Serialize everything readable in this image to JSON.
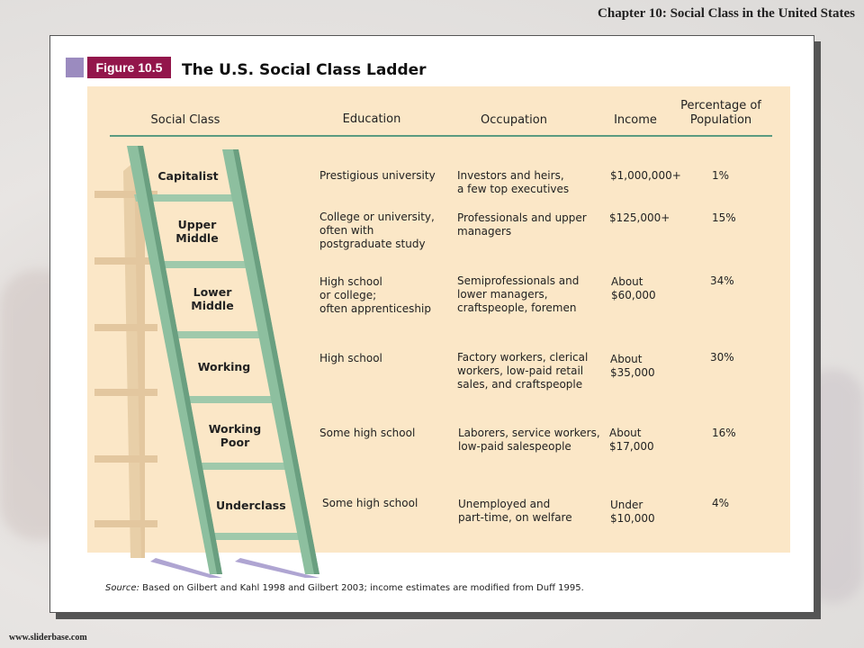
{
  "slide": {
    "chapter": "Chapter  10: Social Class in the United States",
    "site": "www.sliderbase.com"
  },
  "figure": {
    "label": "Figure 10.5",
    "title": "The U.S. Social Class Ladder"
  },
  "table": {
    "headers": {
      "social_class": "Social Class",
      "education": "Education",
      "occupation": "Occupation",
      "income": "Income",
      "percentage": "Percentage of\nPopulation"
    },
    "rows": [
      {
        "class": "Capitalist",
        "education": "Prestigious university",
        "occupation": "Investors and heirs,\na few top executives",
        "income": "$1,000,000+",
        "percentage": "1%"
      },
      {
        "class": "Upper\nMiddle",
        "education": "College or university,\noften with\npostgraduate study",
        "occupation": "Professionals and upper\nmanagers",
        "income": "$125,000+",
        "percentage": "15%"
      },
      {
        "class": "Lower\nMiddle",
        "education": "High school\nor college;\noften apprenticeship",
        "occupation": "Semiprofessionals and\nlower managers,\ncraftspeople, foremen",
        "income": "About\n$60,000",
        "percentage": "34%"
      },
      {
        "class": "Working",
        "education": "High school",
        "occupation": "Factory workers, clerical\nworkers, low-paid retail\nsales, and craftspeople",
        "income": "About\n$35,000",
        "percentage": "30%"
      },
      {
        "class": "Working\nPoor",
        "education": "Some high school",
        "occupation": "Laborers, service workers,\nlow-paid salespeople",
        "income": "About\n$17,000",
        "percentage": "16%"
      },
      {
        "class": "Underclass",
        "education": "Some high school",
        "occupation": "Unemployed and\npart-time, on welfare",
        "income": "Under\n$10,000",
        "percentage": "4%"
      }
    ]
  },
  "source": {
    "label": "Source:",
    "text": " Based on Gilbert and Kahl 1998 and Gilbert 2003; income estimates are modified from Duff 1995."
  },
  "colors": {
    "figure_label_bg": "#93164b",
    "figure_square": "#9b8bbf",
    "chart_bg": "#fbe7c7",
    "ladder_green": "#8dbf9f",
    "ladder_tan": "#e3c79f",
    "rule": "#5b9b81"
  }
}
